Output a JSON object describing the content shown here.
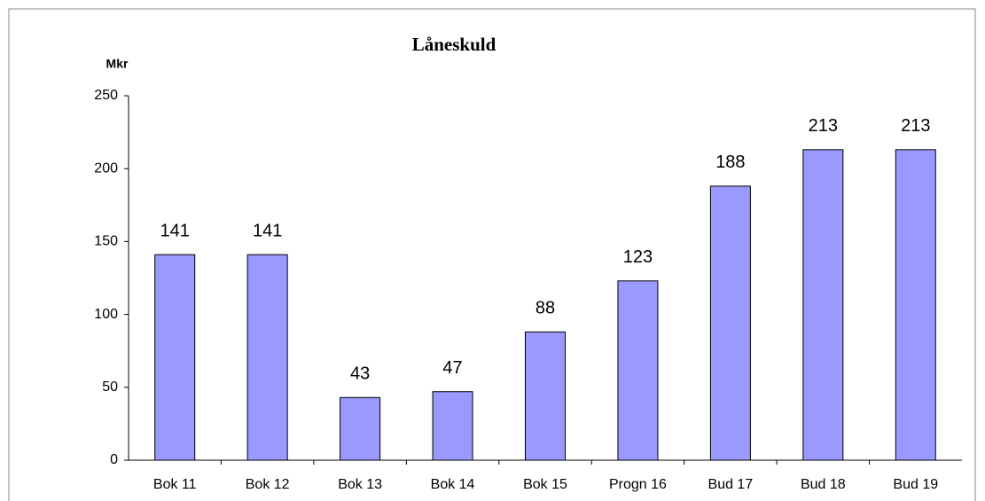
{
  "chart_data": {
    "type": "bar",
    "title": "Låneskuld",
    "y_label": "Mkr",
    "categories": [
      "Bok 11",
      "Bok 12",
      "Bok 13",
      "Bok 14",
      "Bok 15",
      "Progn 16",
      "Bud 17",
      "Bud 18",
      "Bud 19"
    ],
    "values": [
      141,
      141,
      43,
      47,
      88,
      123,
      188,
      213,
      213
    ],
    "color": "#9999ff",
    "ylim": [
      0,
      250
    ],
    "yticks": [
      0,
      50,
      100,
      150,
      200,
      250
    ],
    "grid": false
  }
}
